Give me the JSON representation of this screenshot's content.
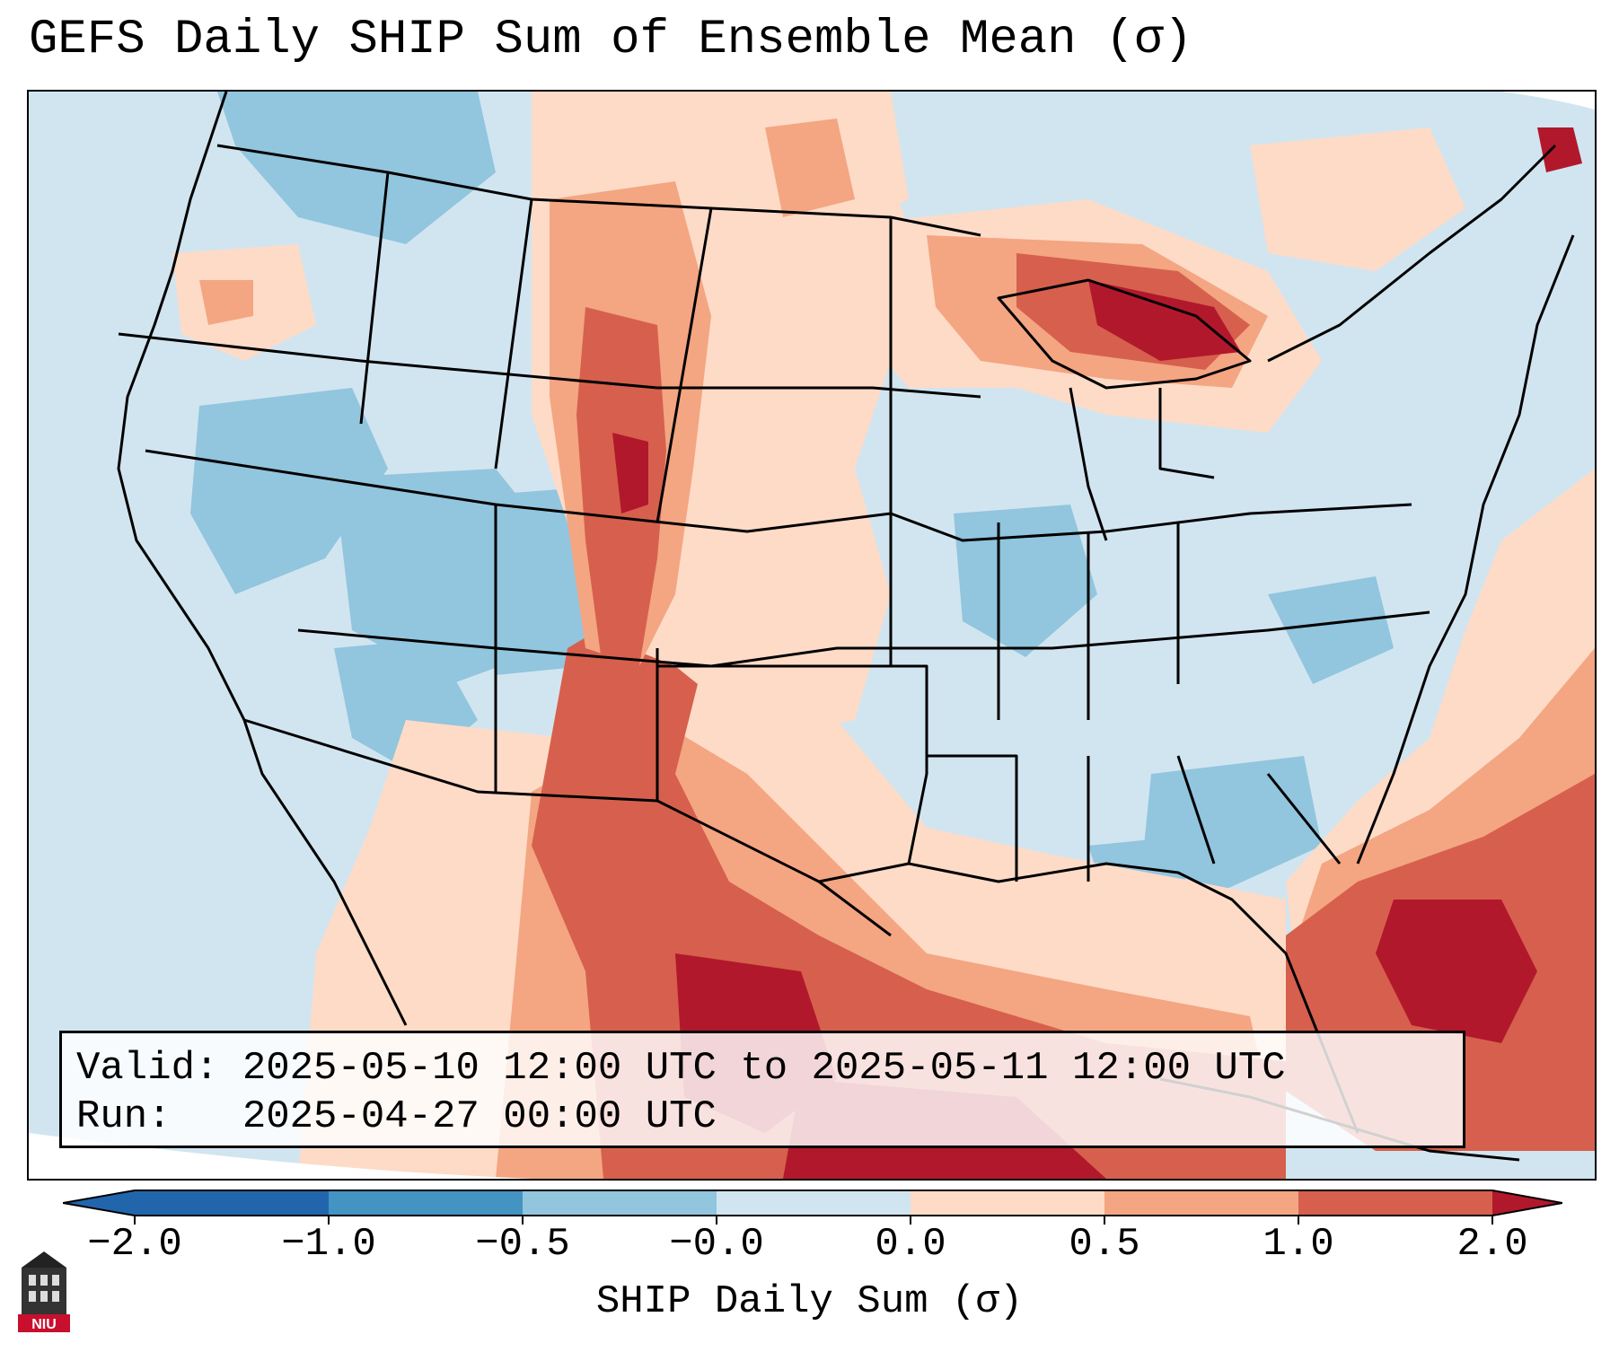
{
  "title": "GEFS Daily SHIP Sum of Ensemble Mean (σ)",
  "info": {
    "valid_label": "Valid:",
    "valid_value": "2025-05-10 12:00 UTC to 2025-05-11 12:00 UTC",
    "run_label": "Run:",
    "run_value": "2025-04-27 00:00 UTC"
  },
  "colorbar": {
    "label": "SHIP Daily Sum (σ)",
    "tick_labels": [
      "−2.0",
      "−1.0",
      "−0.5",
      "−0.0",
      "0.0",
      "0.5",
      "1.0",
      "2.0"
    ],
    "bins": [
      "#2166ac",
      "#4393c3",
      "#92c5de",
      "#d1e5f0",
      "#ffffff",
      "#fddbc7",
      "#f4a582",
      "#d6604d",
      "#b2182b"
    ],
    "extend": "both"
  },
  "logo": {
    "text": "NIU",
    "icon": "university-tower-icon"
  },
  "map": {
    "projection": "lambert-conformal-conus",
    "background_color": "#d1e5f0",
    "region": "Contiguous United States, southern Canada, northern Mexico, Gulf of Mexico, western Atlantic"
  }
}
